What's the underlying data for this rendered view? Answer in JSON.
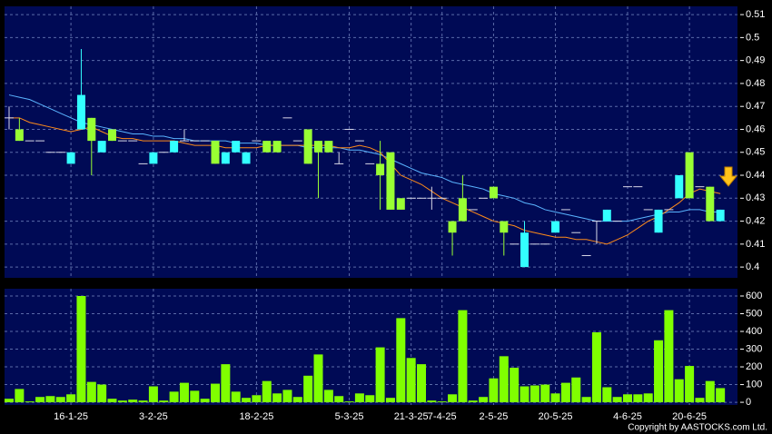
{
  "chart_data": [
    {
      "type": "candlestick",
      "up_color": "#33ffff",
      "down_color": "#99ff33",
      "flat_color": "#d8d8e8",
      "open": [
        0.465,
        0.46,
        0.455,
        0.455,
        0.45,
        0.45,
        0.445,
        0.46,
        0.465,
        0.45,
        0.46,
        0.455,
        0.455,
        0.445,
        0.445,
        0.45,
        0.45,
        0.455,
        0.455,
        0.455,
        0.455,
        0.445,
        0.45,
        0.445,
        0.455,
        0.455,
        0.455,
        0.465,
        0.455,
        0.46,
        0.455,
        0.455,
        0.445,
        0.46,
        0.455,
        0.445,
        0.445,
        0.45,
        0.43,
        0.43,
        0.43,
        0.43,
        0.43,
        0.42,
        0.43,
        0.425,
        0.43,
        0.435,
        0.42,
        0.41,
        0.4,
        0.41,
        0.41,
        0.415,
        0.425,
        0.415,
        0.405,
        0.42,
        0.42,
        0.42,
        0.435,
        0.435,
        0.425,
        0.415,
        0.425,
        0.43,
        0.45,
        0.435,
        0.435,
        0.42
      ],
      "high": [
        0.47,
        0.465,
        0.455,
        0.455,
        0.45,
        0.45,
        0.45,
        0.495,
        0.465,
        0.455,
        0.46,
        0.455,
        0.455,
        0.445,
        0.45,
        0.45,
        0.455,
        0.46,
        0.455,
        0.455,
        0.455,
        0.45,
        0.455,
        0.45,
        0.455,
        0.455,
        0.455,
        0.465,
        0.455,
        0.46,
        0.455,
        0.455,
        0.45,
        0.46,
        0.455,
        0.445,
        0.455,
        0.45,
        0.43,
        0.43,
        0.43,
        0.435,
        0.43,
        0.42,
        0.44,
        0.425,
        0.43,
        0.435,
        0.42,
        0.41,
        0.42,
        0.41,
        0.41,
        0.42,
        0.425,
        0.415,
        0.405,
        0.42,
        0.425,
        0.42,
        0.435,
        0.435,
        0.425,
        0.425,
        0.425,
        0.44,
        0.45,
        0.435,
        0.435,
        0.425
      ],
      "low": [
        0.46,
        0.455,
        0.455,
        0.455,
        0.45,
        0.45,
        0.445,
        0.46,
        0.44,
        0.45,
        0.455,
        0.455,
        0.455,
        0.445,
        0.445,
        0.45,
        0.45,
        0.455,
        0.455,
        0.455,
        0.445,
        0.445,
        0.45,
        0.445,
        0.455,
        0.45,
        0.45,
        0.465,
        0.455,
        0.445,
        0.43,
        0.45,
        0.445,
        0.46,
        0.455,
        0.445,
        0.425,
        0.425,
        0.425,
        0.43,
        0.43,
        0.425,
        0.43,
        0.405,
        0.42,
        0.425,
        0.43,
        0.43,
        0.405,
        0.41,
        0.4,
        0.41,
        0.41,
        0.415,
        0.425,
        0.415,
        0.405,
        0.41,
        0.42,
        0.42,
        0.435,
        0.435,
        0.425,
        0.415,
        0.425,
        0.43,
        0.43,
        0.435,
        0.42,
        0.42
      ],
      "close": [
        0.465,
        0.455,
        0.455,
        0.455,
        0.45,
        0.45,
        0.45,
        0.475,
        0.455,
        0.455,
        0.455,
        0.455,
        0.455,
        0.445,
        0.45,
        0.45,
        0.455,
        0.455,
        0.455,
        0.455,
        0.445,
        0.45,
        0.455,
        0.45,
        0.455,
        0.45,
        0.45,
        0.465,
        0.455,
        0.445,
        0.45,
        0.45,
        0.445,
        0.46,
        0.455,
        0.445,
        0.44,
        0.425,
        0.425,
        0.43,
        0.43,
        0.43,
        0.43,
        0.415,
        0.42,
        0.425,
        0.43,
        0.43,
        0.415,
        0.41,
        0.415,
        0.41,
        0.41,
        0.42,
        0.425,
        0.415,
        0.405,
        0.42,
        0.425,
        0.42,
        0.435,
        0.435,
        0.425,
        0.425,
        0.425,
        0.44,
        0.43,
        0.435,
        0.42,
        0.425
      ],
      "series": [
        {
          "color": "#5ab4ff",
          "values": [
            0.475,
            0.474,
            0.473,
            0.471,
            0.469,
            0.467,
            0.465,
            0.463,
            0.462,
            0.461,
            0.46,
            0.459,
            0.458,
            0.458,
            0.457,
            0.457,
            0.456,
            0.456,
            0.455,
            0.455,
            0.455,
            0.455,
            0.454,
            0.454,
            0.454,
            0.453,
            0.453,
            0.453,
            0.453,
            0.452,
            0.452,
            0.452,
            0.452,
            0.451,
            0.451,
            0.45,
            0.449,
            0.447,
            0.445,
            0.443,
            0.441,
            0.44,
            0.439,
            0.437,
            0.436,
            0.435,
            0.434,
            0.432,
            0.431,
            0.43,
            0.428,
            0.427,
            0.425,
            0.424,
            0.423,
            0.422,
            0.421,
            0.42,
            0.42,
            0.42,
            0.42,
            0.421,
            0.422,
            0.423,
            0.424,
            0.424,
            0.425,
            0.425,
            0.424,
            0.424
          ]
        },
        {
          "color": "#ff8c1a",
          "values": [
            0.465,
            0.465,
            0.463,
            0.462,
            0.461,
            0.46,
            0.459,
            0.46,
            0.461,
            0.459,
            0.457,
            0.456,
            0.456,
            0.455,
            0.455,
            0.455,
            0.455,
            0.454,
            0.453,
            0.453,
            0.453,
            0.452,
            0.452,
            0.452,
            0.452,
            0.453,
            0.453,
            0.453,
            0.453,
            0.453,
            0.453,
            0.453,
            0.452,
            0.452,
            0.453,
            0.452,
            0.45,
            0.445,
            0.44,
            0.438,
            0.436,
            0.433,
            0.43,
            0.428,
            0.426,
            0.424,
            0.422,
            0.42,
            0.419,
            0.418,
            0.416,
            0.415,
            0.414,
            0.413,
            0.413,
            0.412,
            0.412,
            0.411,
            0.41,
            0.412,
            0.414,
            0.417,
            0.42,
            0.422,
            0.425,
            0.428,
            0.432,
            0.434,
            0.433,
            0.432
          ]
        }
      ],
      "ylim": [
        0.3953,
        0.5136
      ],
      "yticks": [
        0.4,
        0.41,
        0.42,
        0.43,
        0.44,
        0.45,
        0.46,
        0.47,
        0.48,
        0.49,
        0.5,
        0.51
      ],
      "grid": true
    },
    {
      "type": "bar",
      "color": "#80ff00",
      "categories": [
        null,
        null,
        null,
        null,
        null,
        null,
        "16-1-25",
        null,
        null,
        null,
        null,
        null,
        null,
        null,
        "3-2-25",
        null,
        null,
        null,
        null,
        null,
        null,
        null,
        null,
        null,
        "18-2-25",
        null,
        null,
        null,
        null,
        null,
        null,
        null,
        null,
        "5-3-25",
        null,
        null,
        null,
        null,
        null,
        "21-3-25",
        null,
        null,
        "7-4-25",
        null,
        null,
        null,
        null,
        "2-5-25",
        null,
        null,
        null,
        null,
        null,
        "20-5-25",
        null,
        null,
        null,
        null,
        null,
        null,
        "4-6-25",
        null,
        null,
        null,
        null,
        null,
        "20-6-25",
        null,
        null,
        null
      ],
      "values": [
        20,
        75,
        5,
        30,
        35,
        30,
        45,
        600,
        115,
        100,
        20,
        10,
        15,
        10,
        90,
        10,
        60,
        110,
        65,
        20,
        105,
        215,
        60,
        25,
        40,
        120,
        50,
        70,
        30,
        150,
        270,
        70,
        35,
        5,
        50,
        40,
        310,
        25,
        475,
        250,
        215,
        10,
        5,
        45,
        520,
        10,
        30,
        135,
        260,
        195,
        90,
        95,
        100,
        50,
        110,
        140,
        30,
        395,
        85,
        30,
        45,
        45,
        50,
        350,
        520,
        130,
        205,
        25,
        120,
        80
      ],
      "ylim": [
        -15,
        641
      ],
      "yticks": [
        0,
        100,
        200,
        300,
        400,
        500,
        600
      ],
      "grid": true
    }
  ],
  "copyright": "Copyright by AASTOCKS.com Ltd."
}
